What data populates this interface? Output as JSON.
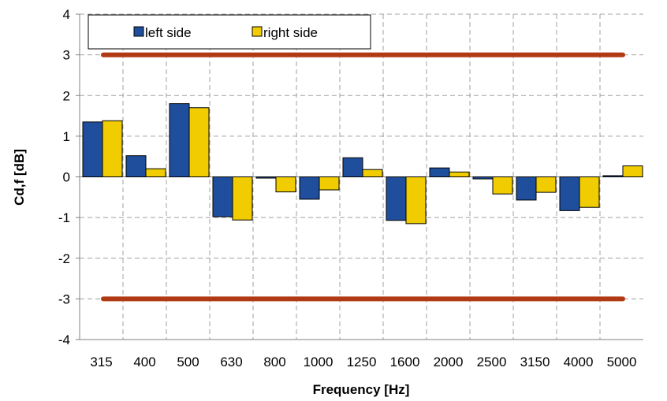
{
  "chart_data": {
    "type": "bar",
    "xlabel": "Frequency [Hz]",
    "ylabel": "Cd,f [dB]",
    "ylim": [
      -4,
      4
    ],
    "yticks": [
      4,
      3,
      2,
      1,
      0,
      -1,
      -2,
      -3,
      -4
    ],
    "categories": [
      "315",
      "400",
      "500",
      "630",
      "800",
      "1000",
      "1250",
      "1600",
      "2000",
      "2500",
      "3150",
      "4000",
      "5000"
    ],
    "series": [
      {
        "name": "left side",
        "color": "#1f4e9c",
        "values": [
          1.35,
          0.52,
          1.8,
          -0.98,
          -0.03,
          -0.55,
          0.47,
          -1.07,
          0.22,
          -0.05,
          -0.57,
          -0.83,
          0.03
        ]
      },
      {
        "name": "right side",
        "color": "#f0cc00",
        "values": [
          1.38,
          0.2,
          1.7,
          -1.06,
          -0.37,
          -0.32,
          0.18,
          -1.15,
          0.12,
          -0.42,
          -0.38,
          -0.75,
          0.27
        ]
      }
    ],
    "limit_lines": [
      3,
      -3
    ],
    "limit_color": "#b03a14",
    "grid": true,
    "legend_position": "top-left"
  }
}
